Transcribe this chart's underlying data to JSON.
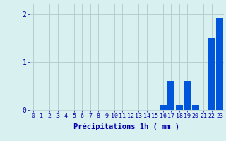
{
  "hours": [
    0,
    1,
    2,
    3,
    4,
    5,
    6,
    7,
    8,
    9,
    10,
    11,
    12,
    13,
    14,
    15,
    16,
    17,
    18,
    19,
    20,
    21,
    22,
    23
  ],
  "values": [
    0,
    0,
    0,
    0,
    0,
    0,
    0,
    0,
    0,
    0,
    0,
    0,
    0,
    0,
    0,
    0,
    0.1,
    0.6,
    0.1,
    0.6,
    0.1,
    0,
    1.5,
    1.9
  ],
  "bar_color": "#0055dd",
  "background_color": "#d8f0f0",
  "grid_color": "#b8cece",
  "axis_color": "#0000aa",
  "xlabel": "Précipitations 1h ( mm )",
  "xlabel_fontsize": 7.5,
  "tick_fontsize": 6,
  "ylim": [
    0,
    2.2
  ],
  "yticks": [
    0,
    1,
    2
  ],
  "xlim": [
    -0.5,
    23.5
  ]
}
